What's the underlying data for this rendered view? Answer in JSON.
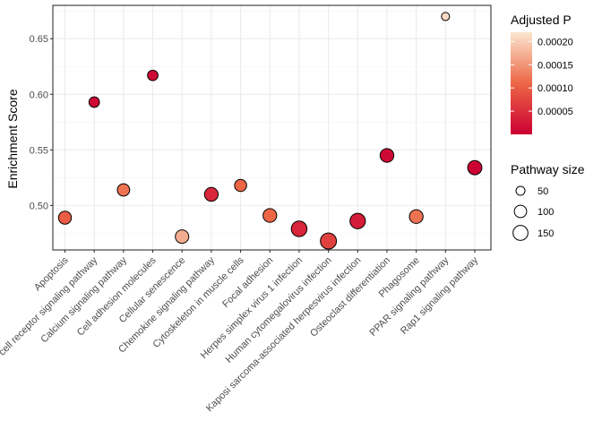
{
  "chart_data": {
    "type": "scatter",
    "ylabel": "Enrichment Score",
    "xlabel": "",
    "ylim": [
      0.46,
      0.68
    ],
    "yticks": [
      0.5,
      0.55,
      0.6,
      0.65
    ],
    "ytick_labels": [
      "0.50",
      "0.55",
      "0.60",
      "0.65"
    ],
    "grid": true,
    "categories": [
      "Apoptosis",
      "B cell receptor signaling pathway",
      "Calcium signaling pathway",
      "Cell adhesion molecules",
      "Cellular senescence",
      "Chemokine signaling pathway",
      "Cytoskeleton in muscle cells",
      "Focal adhesion",
      "Herpes simplex virus 1 infection",
      "Human cytomegalovirus infection",
      "Kaposi sarcoma-associated herpesvirus infection",
      "Osteoclast differentiation",
      "Phagosome",
      "PPAR signaling pathway",
      "Rap1 signaling pathway"
    ],
    "points": [
      {
        "category": "Apoptosis",
        "y": 0.489,
        "padj": 0.0001,
        "size": 110
      },
      {
        "category": "B cell receptor signaling pathway",
        "y": 0.593,
        "padj": 1e-05,
        "size": 70
      },
      {
        "category": "Calcium signaling pathway",
        "y": 0.514,
        "padj": 0.00012,
        "size": 100
      },
      {
        "category": "Cell adhesion molecules",
        "y": 0.617,
        "padj": 1e-05,
        "size": 70
      },
      {
        "category": "Cellular senescence",
        "y": 0.472,
        "padj": 0.00017,
        "size": 120
      },
      {
        "category": "Chemokine signaling pathway",
        "y": 0.51,
        "padj": 4e-05,
        "size": 125
      },
      {
        "category": "Cytoskeleton in muscle cells",
        "y": 0.518,
        "padj": 0.00011,
        "size": 95
      },
      {
        "category": "Focal adhesion",
        "y": 0.491,
        "padj": 0.00011,
        "size": 125
      },
      {
        "category": "Herpes simplex virus 1 infection",
        "y": 0.479,
        "padj": 4e-05,
        "size": 165
      },
      {
        "category": "Human cytomegalovirus infection",
        "y": 0.468,
        "padj": 7e-05,
        "size": 175
      },
      {
        "category": "Kaposi sarcoma-associated herpesvirus infection",
        "y": 0.486,
        "padj": 3e-05,
        "size": 160
      },
      {
        "category": "Osteoclast differentiation",
        "y": 0.545,
        "padj": 1e-05,
        "size": 125
      },
      {
        "category": "Phagosome",
        "y": 0.49,
        "padj": 0.00012,
        "size": 125
      },
      {
        "category": "PPAR signaling pathway",
        "y": 0.67,
        "padj": 0.00021,
        "size": 40
      },
      {
        "category": "Rap1 signaling pathway",
        "y": 0.534,
        "padj": 0.0,
        "size": 135
      }
    ],
    "color_legend": {
      "title": "Adjusted P",
      "range": [
        0.0,
        0.00022
      ],
      "breaks": [
        5e-05,
        0.0001,
        0.00015,
        0.0002
      ],
      "labels": [
        "0.00005",
        "0.00010",
        "0.00015",
        "0.00020"
      ],
      "low_color": "#cc0033",
      "mid_color": "#ec6646",
      "high_color": "#fbe6cf"
    },
    "size_legend": {
      "title": "Pathway size",
      "breaks": [
        50,
        100,
        150
      ],
      "labels": [
        "50",
        "100",
        "150"
      ]
    },
    "point_outline_color": "#000000"
  }
}
